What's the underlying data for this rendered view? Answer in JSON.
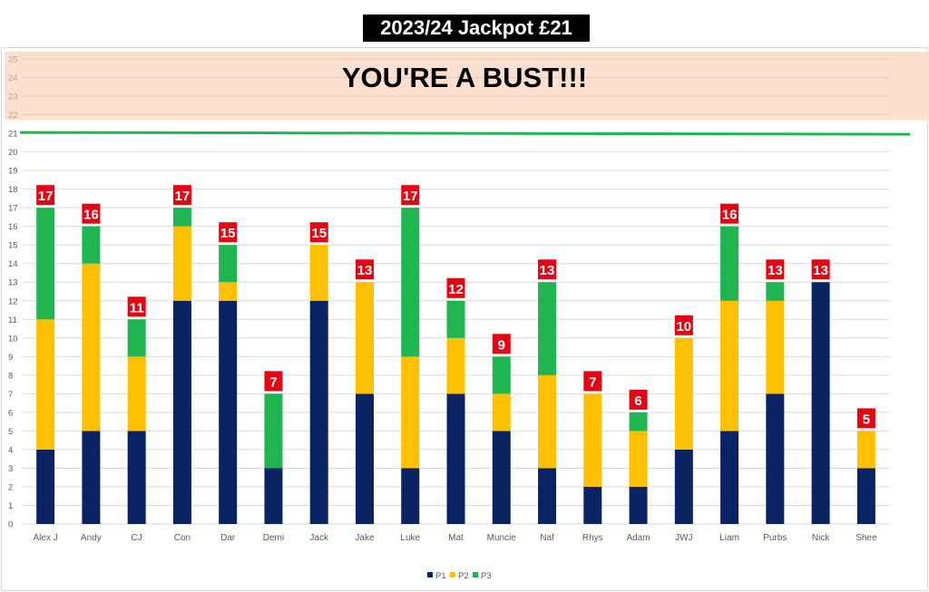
{
  "title": "2023/24 Jackpot £21",
  "band_text": "YOU'RE A BUST!!!",
  "chart_data": {
    "type": "bar",
    "stacked": true,
    "title": "2023/24 Jackpot £21",
    "categories": [
      "Alex J",
      "Andy",
      "CJ",
      "Con",
      "Dar",
      "Demi",
      "Jack",
      "Jake",
      "Luke",
      "Mat",
      "Muncie",
      "Naf",
      "Rhys",
      "Adam",
      "JWJ",
      "Liam",
      "Purbs",
      "Nick",
      "Shee"
    ],
    "series": [
      {
        "name": "P1",
        "color": "#0a2463",
        "values": [
          4,
          5,
          5,
          12,
          12,
          3,
          12,
          7,
          3,
          7,
          5,
          3,
          2,
          2,
          4,
          5,
          7,
          13,
          3
        ]
      },
      {
        "name": "P2",
        "color": "#ffc000",
        "values": [
          7,
          9,
          4,
          4,
          1,
          0,
          3,
          6,
          6,
          3,
          2,
          5,
          5,
          3,
          6,
          7,
          5,
          0,
          2
        ]
      },
      {
        "name": "P3",
        "color": "#1fb550",
        "values": [
          6,
          2,
          2,
          1,
          2,
          4,
          0,
          0,
          8,
          2,
          2,
          5,
          0,
          1,
          0,
          4,
          1,
          0,
          0
        ]
      }
    ],
    "totals": [
      17,
      16,
      11,
      17,
      15,
      7,
      15,
      13,
      17,
      12,
      9,
      13,
      7,
      6,
      10,
      16,
      13,
      13,
      5
    ],
    "ylim": [
      0,
      25
    ],
    "yticks": [
      0,
      1,
      2,
      3,
      4,
      5,
      6,
      7,
      8,
      9,
      10,
      11,
      12,
      13,
      14,
      15,
      16,
      17,
      18,
      19,
      20,
      21,
      22,
      23,
      24,
      25
    ],
    "grid": true,
    "legend": "bottom",
    "jackpot_line": 21,
    "bust_zone": [
      22,
      25
    ],
    "bust_color": "#fbe0d0",
    "label_color": "#e30613"
  }
}
